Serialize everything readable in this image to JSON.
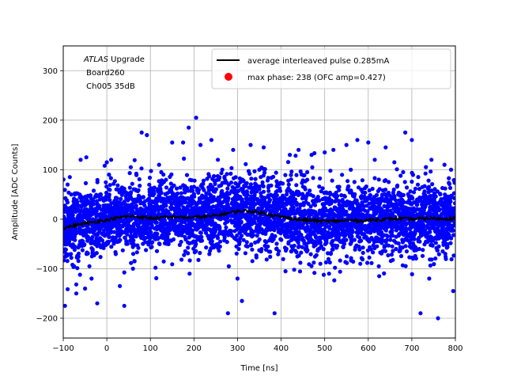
{
  "chart_data": {
    "type": "scatter",
    "xlabel": "Time [ns]",
    "ylabel": "Amplitude [ADC Counts]",
    "xlim": [
      -100,
      800
    ],
    "ylim": [
      -240,
      350
    ],
    "xticks": [
      -100,
      0,
      100,
      200,
      300,
      400,
      500,
      600,
      700,
      800
    ],
    "xtick_labels": [
      "−100",
      "0",
      "100",
      "200",
      "300",
      "400",
      "500",
      "600",
      "700",
      "800"
    ],
    "yticks": [
      -200,
      -100,
      0,
      100,
      200,
      300
    ],
    "ytick_labels": [
      "−200",
      "−100",
      "0",
      "100",
      "200",
      "300"
    ],
    "grid": true,
    "legend_position": "top-right",
    "annotation": {
      "italic": "ATLAS",
      "rest": " Upgrade",
      "line2": " Board260",
      "line3": " Ch005 35dB"
    },
    "series": [
      {
        "name": "average interleaved pulse 0.285mA",
        "kind": "line",
        "color": "#000000",
        "x": [
          -100,
          -80,
          -60,
          -40,
          -20,
          0,
          20,
          40,
          60,
          80,
          100,
          120,
          140,
          160,
          180,
          200,
          220,
          240,
          260,
          280,
          300,
          320,
          340,
          360,
          380,
          400,
          420,
          440,
          460,
          480,
          500,
          520,
          540,
          560,
          580,
          600,
          620,
          640,
          660,
          680,
          700,
          720,
          740,
          760,
          780,
          800
        ],
        "y": [
          -18,
          -14,
          -10,
          -7,
          -4,
          -2,
          2,
          5,
          6,
          4,
          2,
          3,
          4,
          5,
          3,
          4,
          5,
          6,
          9,
          13,
          16,
          17,
          15,
          12,
          8,
          5,
          2,
          -1,
          -2,
          -3,
          -4,
          -4,
          -3,
          -2,
          -3,
          -2,
          -1,
          0,
          1,
          1,
          0,
          1,
          2,
          1,
          1,
          2
        ]
      },
      {
        "name": "max phase: 238 (OFC amp=0.427)",
        "kind": "marker",
        "color": "#ff0000",
        "x": [],
        "y": []
      },
      {
        "name": "",
        "kind": "scatter",
        "color": "#0000ff",
        "description_values_generated_by_seeded_noise": false,
        "x": [
          -96,
          -90,
          -70,
          -60,
          -50,
          -47,
          -35,
          -22,
          0,
          10,
          30,
          40,
          55,
          80,
          92,
          120,
          150,
          175,
          188,
          205,
          215,
          240,
          255,
          278,
          290,
          310,
          330,
          360,
          385,
          420,
          440,
          470,
          500,
          520,
          550,
          575,
          600,
          615,
          640,
          660,
          685,
          700,
          720,
          745,
          760,
          775,
          790,
          -85,
          -40,
          5,
          60,
          125,
          190,
          265,
          300,
          350,
          410,
          460,
          510,
          560,
          625,
          680,
          740,
          795
        ],
        "y": [
          -175,
          70,
          -150,
          120,
          -140,
          125,
          -120,
          -170,
          115,
          120,
          -135,
          -175,
          105,
          175,
          170,
          110,
          155,
          155,
          185,
          205,
          150,
          160,
          120,
          -190,
          140,
          -165,
          150,
          145,
          -190,
          130,
          140,
          130,
          135,
          140,
          150,
          160,
          155,
          120,
          145,
          115,
          175,
          160,
          -190,
          120,
          -200,
          110,
          100,
          85,
          -95,
          90,
          -100,
          95,
          -110,
          100,
          -120,
          100,
          -105,
          95,
          -110,
          100,
          -115,
          95,
          -120,
          -145
        ]
      }
    ]
  }
}
